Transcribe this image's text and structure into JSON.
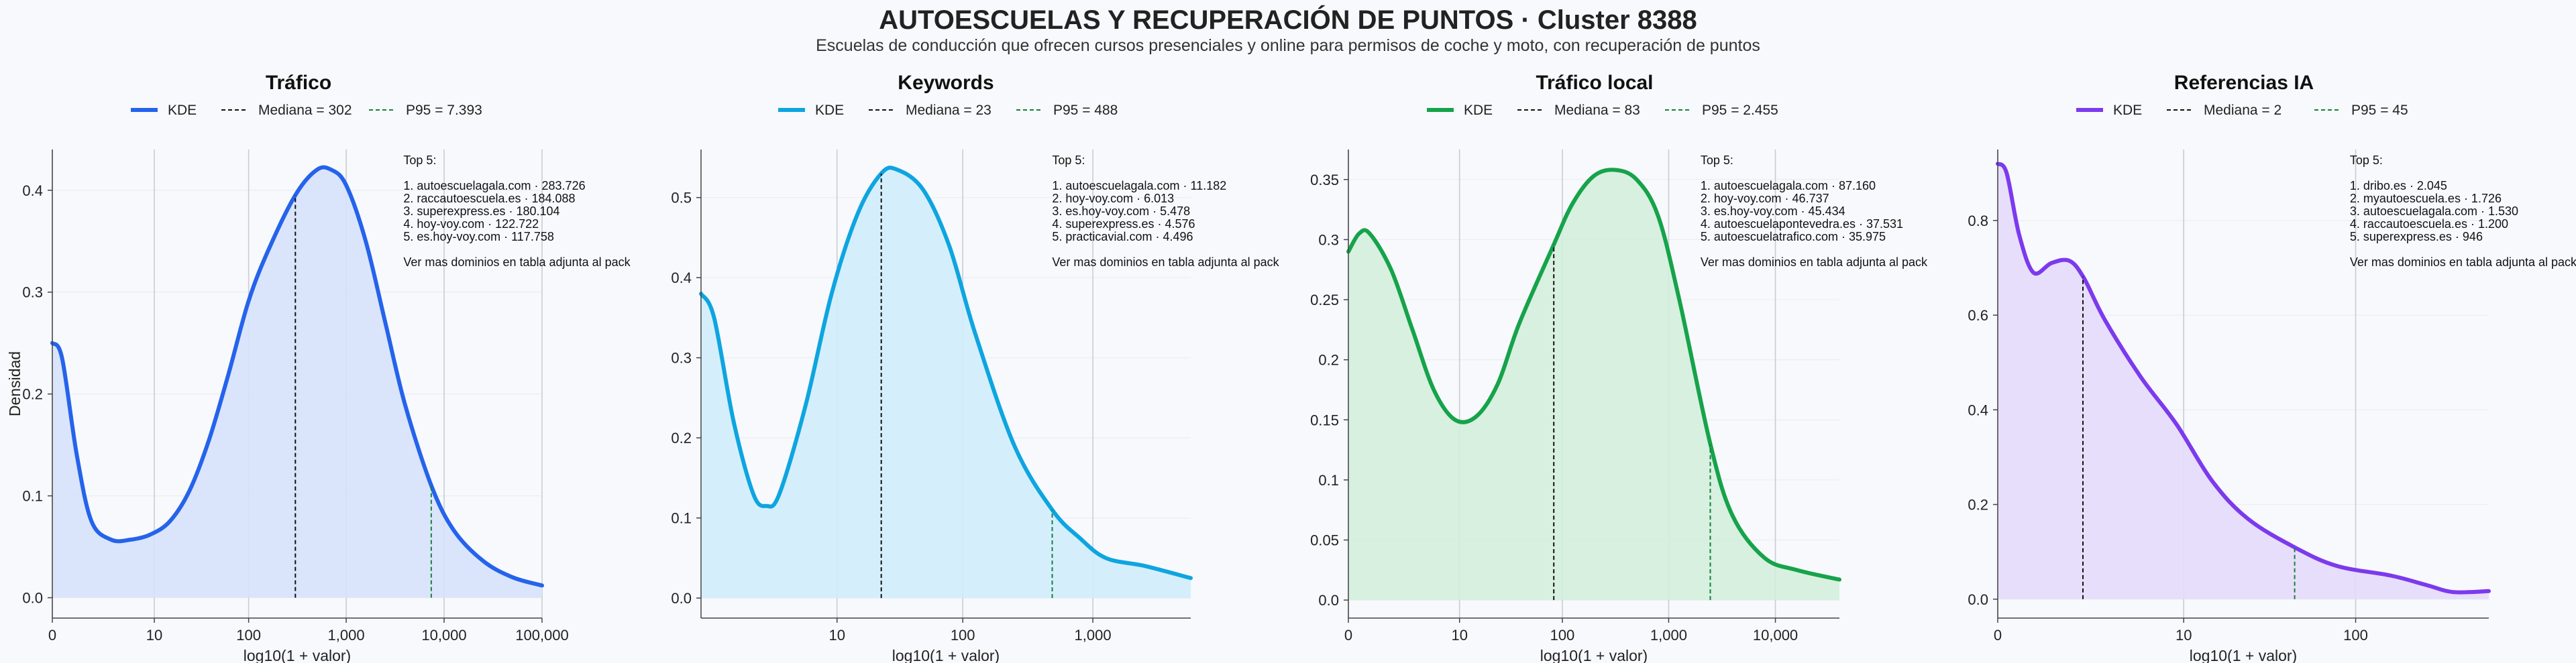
{
  "title": "AUTOESCUELAS Y RECUPERACIÓN DE PUNTOS · Cluster 8388",
  "subtitle": "Escuelas de conducción que ofrecen cursos presenciales y online para permisos de coche y moto, con recuperación de puntos",
  "chart_data": [
    {
      "type": "area",
      "title": "Tráfico",
      "xlabel": "log10(1 + valor)",
      "ylabel": "Densidad",
      "color": "#2563eb",
      "fill": "#d6e2fb",
      "x_ticks": [
        0,
        10,
        100,
        1000,
        10000,
        100000
      ],
      "x_tick_labels": [
        "0",
        "10",
        "100",
        "1,000",
        "10,000",
        "100,000"
      ],
      "xlim": [
        0,
        5.0
      ],
      "y_ticks": [
        0.0,
        0.1,
        0.2,
        0.3,
        0.4
      ],
      "ylim": [
        -0.02,
        0.44
      ],
      "legend": [
        "KDE",
        "Mediana = 302",
        "P95 = 7.393"
      ],
      "median_value": 302,
      "p95_value": 7393,
      "x": [
        0.0,
        0.1,
        0.25,
        0.4,
        0.6,
        0.8,
        1.0,
        1.2,
        1.4,
        1.6,
        1.8,
        2.0,
        2.2,
        2.48,
        2.7,
        2.85,
        3.0,
        3.2,
        3.4,
        3.6,
        3.87,
        4.1,
        4.4,
        4.7,
        5.0
      ],
      "y": [
        0.25,
        0.235,
        0.14,
        0.075,
        0.057,
        0.057,
        0.062,
        0.075,
        0.105,
        0.155,
        0.22,
        0.29,
        0.34,
        0.395,
        0.42,
        0.42,
        0.405,
        0.35,
        0.27,
        0.19,
        0.11,
        0.066,
        0.036,
        0.02,
        0.012
      ],
      "grid": "x",
      "legend_placement": "top",
      "top5": {
        "header": "Top 5:",
        "items": [
          "1. autoescuelagala.com · 283.726",
          "2. raccautoescuela.es · 184.088",
          "3. superexpress.es · 180.104",
          "4. hoy-voy.com · 122.722",
          "5. es.hoy-voy.com · 117.758"
        ],
        "footer": "Ver mas dominios en tabla adjunta al pack"
      }
    },
    {
      "type": "area",
      "title": "Keywords",
      "xlabel": "log10(1 + valor)",
      "ylabel": "",
      "color": "#0ea5e0",
      "fill": "#cfedfb",
      "x_ticks": [
        10,
        100,
        1000
      ],
      "x_tick_labels": [
        "10",
        "100",
        "1,000"
      ],
      "xlim": [
        0,
        3.75
      ],
      "y_ticks": [
        0.0,
        0.1,
        0.2,
        0.3,
        0.4,
        0.5
      ],
      "ylim": [
        -0.025,
        0.56
      ],
      "legend": [
        "KDE",
        "Mediana = 23",
        "P95 = 488"
      ],
      "median_value": 23,
      "p95_value": 488,
      "x": [
        0.0,
        0.1,
        0.25,
        0.4,
        0.5,
        0.6,
        0.8,
        1.0,
        1.2,
        1.38,
        1.5,
        1.7,
        1.9,
        2.1,
        2.4,
        2.69,
        2.9,
        3.1,
        3.4,
        3.75
      ],
      "y": [
        0.38,
        0.35,
        0.22,
        0.13,
        0.115,
        0.13,
        0.24,
        0.38,
        0.48,
        0.53,
        0.535,
        0.51,
        0.44,
        0.33,
        0.19,
        0.11,
        0.075,
        0.05,
        0.04,
        0.025
      ],
      "grid": "x",
      "legend_placement": "top",
      "top5": {
        "header": "Top 5:",
        "items": [
          "1. autoescuelagala.com · 11.182",
          "2. hoy-voy.com · 6.013",
          "3. es.hoy-voy.com · 5.478",
          "4. superexpress.es · 4.576",
          "5. practicavial.com · 4.496"
        ],
        "footer": "Ver mas dominios en tabla adjunta al pack"
      }
    },
    {
      "type": "area",
      "title": "Tráfico local",
      "xlabel": "log10(1 + valor)",
      "ylabel": "",
      "color": "#16a34a",
      "fill": "#d3eedd",
      "x_ticks": [
        0,
        10,
        100,
        1000,
        10000
      ],
      "x_tick_labels": [
        "0",
        "10",
        "100",
        "1,000",
        "10,000"
      ],
      "xlim": [
        0,
        4.6
      ],
      "y_ticks": [
        0.0,
        0.05,
        0.1,
        0.15,
        0.2,
        0.25,
        0.3,
        0.35
      ],
      "ylim": [
        -0.015,
        0.375
      ],
      "legend": [
        "KDE",
        "Mediana = 83",
        "P95 = 2.455"
      ],
      "median_value": 83,
      "p95_value": 2455,
      "x": [
        0.0,
        0.1,
        0.2,
        0.4,
        0.6,
        0.8,
        1.0,
        1.2,
        1.4,
        1.6,
        1.92,
        2.1,
        2.3,
        2.5,
        2.7,
        2.9,
        3.1,
        3.39,
        3.6,
        3.9,
        4.2,
        4.6
      ],
      "y": [
        0.29,
        0.305,
        0.305,
        0.275,
        0.225,
        0.175,
        0.15,
        0.153,
        0.18,
        0.23,
        0.295,
        0.33,
        0.353,
        0.358,
        0.35,
        0.32,
        0.25,
        0.13,
        0.07,
        0.035,
        0.025,
        0.017
      ],
      "grid": "x",
      "legend_placement": "top",
      "top5": {
        "header": "Top 5:",
        "items": [
          "1. autoescuelagala.com · 87.160",
          "2. hoy-voy.com · 46.737",
          "3. es.hoy-voy.com · 45.434",
          "4. autoescuelapontevedra.es · 37.531",
          "5. autoescuelatrafico.com · 35.975"
        ],
        "footer": "Ver mas dominios en tabla adjunta al pack"
      }
    },
    {
      "type": "area",
      "title": "Referencias IA",
      "xlabel": "log10(1 + valor)",
      "ylabel": "",
      "color": "#7c3aed",
      "fill": "#e4dafb",
      "x_ticks": [
        0,
        10,
        100
      ],
      "x_tick_labels": [
        "0",
        "10",
        "100"
      ],
      "xlim": [
        0,
        2.75
      ],
      "y_ticks": [
        0.0,
        0.2,
        0.4,
        0.6,
        0.8
      ],
      "ylim": [
        -0.04,
        0.95
      ],
      "legend": [
        "KDE",
        "Mediana = 2",
        "P95 = 45"
      ],
      "median_value": 2,
      "p95_value": 45,
      "x": [
        0.0,
        0.05,
        0.12,
        0.2,
        0.3,
        0.4,
        0.48,
        0.6,
        0.8,
        1.0,
        1.2,
        1.4,
        1.66,
        1.9,
        2.2,
        2.4,
        2.55,
        2.75
      ],
      "y": [
        0.92,
        0.9,
        0.77,
        0.69,
        0.71,
        0.715,
        0.68,
        0.59,
        0.47,
        0.37,
        0.25,
        0.17,
        0.11,
        0.07,
        0.05,
        0.03,
        0.015,
        0.017
      ],
      "grid": "x",
      "legend_placement": "top",
      "top5": {
        "header": "Top 5:",
        "items": [
          "1. dribo.es · 2.045",
          "2. myautoescuela.es · 1.726",
          "3. autoescuelagala.com · 1.530",
          "4. raccautoescuela.es · 1.200",
          "5. superexpress.es · 946"
        ],
        "footer": "Ver mas dominios en tabla adjunta al pack"
      }
    }
  ]
}
